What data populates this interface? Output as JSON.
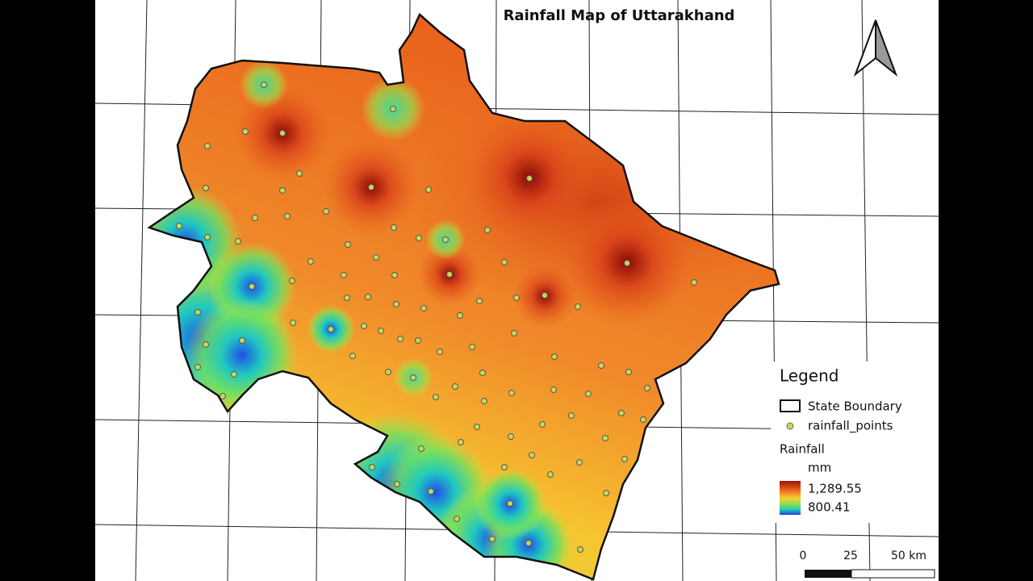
{
  "title": "Rainfall Map of Uttarakhand",
  "legend": {
    "title": "Legend",
    "items": [
      "State Boundary",
      "rainfall_points"
    ],
    "raster": {
      "name": "Rainfall",
      "unit": "mm",
      "max": "1,289.55",
      "min": "800.41"
    }
  },
  "scale_bar": {
    "labels": [
      "0",
      "25",
      "50 km"
    ]
  }
}
